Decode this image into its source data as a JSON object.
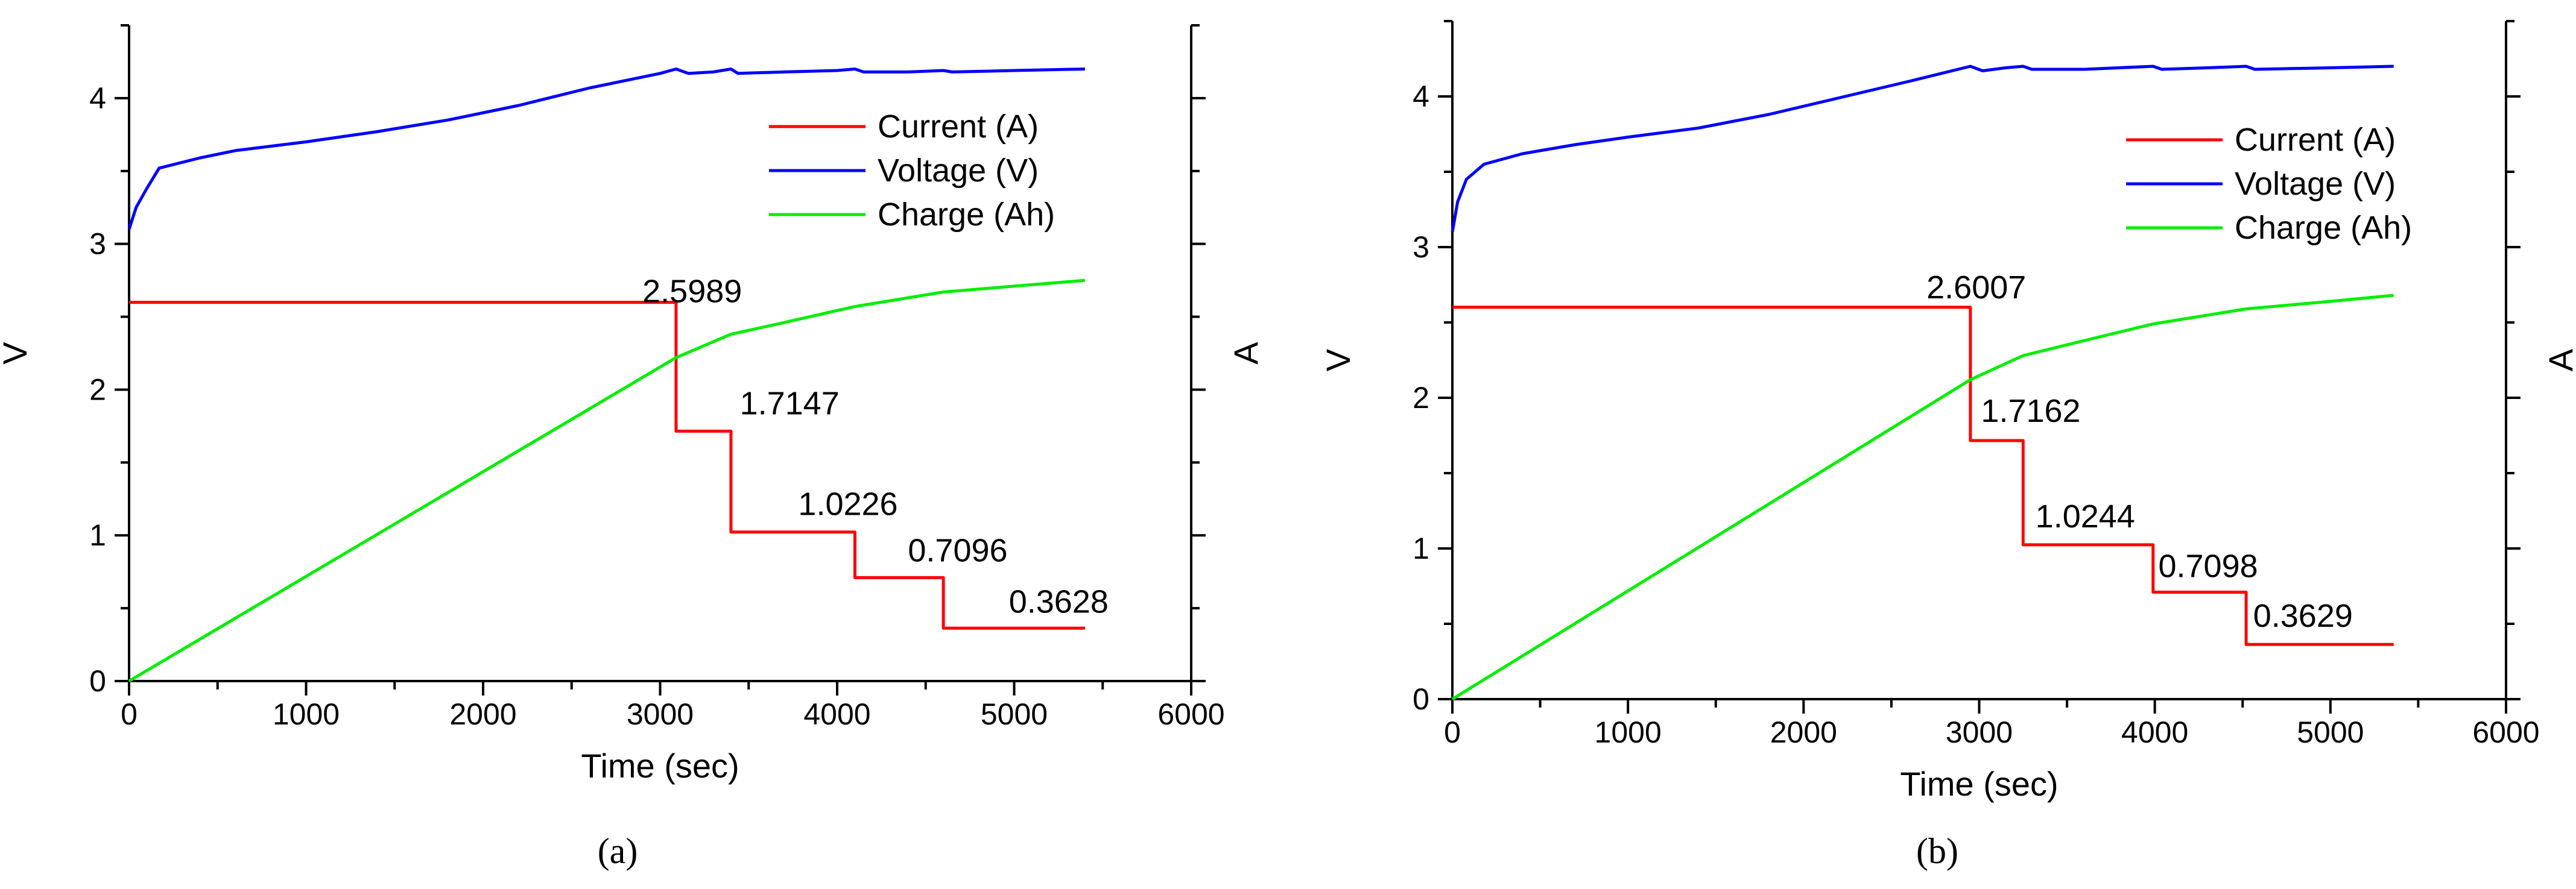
{
  "chart_data": [
    {
      "type": "line",
      "panel_label": "(a)",
      "xlabel": "Time (sec)",
      "ylabel_left": "V",
      "ylabel_right": "A",
      "xlim": [
        0,
        6000
      ],
      "ylim": [
        0,
        4.5
      ],
      "x_ticks": [
        "0",
        "1000",
        "2000",
        "3000",
        "4000",
        "5000",
        "6000"
      ],
      "y_ticks": [
        "0",
        "1",
        "2",
        "3",
        "4"
      ],
      "legend": {
        "position": "top-right",
        "entries": [
          "Current (A)",
          "Voltage (V)",
          "Charge (Ah)"
        ]
      },
      "colors": {
        "current": "#ff0000",
        "voltage": "#0000ff",
        "charge": "#00ee00"
      },
      "series": [
        {
          "name": "Current (A)",
          "key": "current",
          "step": true,
          "x": [
            0,
            3090,
            3090,
            3400,
            3400,
            4100,
            4100,
            4600,
            4600,
            5400
          ],
          "y": [
            2.5989,
            2.5989,
            1.7147,
            1.7147,
            1.0226,
            1.0226,
            0.7096,
            0.7096,
            0.3628,
            0.3628
          ]
        },
        {
          "name": "Voltage (V)",
          "key": "voltage",
          "x": [
            0,
            40,
            100,
            170,
            400,
            600,
            1000,
            1400,
            1800,
            2200,
            2600,
            3000,
            3090,
            3160,
            3300,
            3400,
            3440,
            3700,
            4000,
            4100,
            4150,
            4400,
            4600,
            4650,
            5000,
            5400
          ],
          "y": [
            3.1,
            3.25,
            3.38,
            3.52,
            3.59,
            3.64,
            3.7,
            3.77,
            3.85,
            3.95,
            4.07,
            4.17,
            4.2,
            4.17,
            4.18,
            4.2,
            4.17,
            4.18,
            4.19,
            4.2,
            4.18,
            4.18,
            4.19,
            4.18,
            4.19,
            4.2
          ]
        },
        {
          "name": "Charge (Ah)",
          "key": "charge",
          "x": [
            0,
            3090,
            3400,
            3700,
            4100,
            4600,
            5000,
            5400
          ],
          "y": [
            0,
            2.22,
            2.38,
            2.46,
            2.57,
            2.67,
            2.71,
            2.75
          ]
        }
      ],
      "annotations": [
        {
          "text": "2.5989",
          "x": 2900,
          "y": 2.6
        },
        {
          "text": "1.7147",
          "x": 3450,
          "y": 1.83
        },
        {
          "text": "1.0226",
          "x": 3780,
          "y": 1.14
        },
        {
          "text": "0.7096",
          "x": 4400,
          "y": 0.82
        },
        {
          "text": "0.3628",
          "x": 4970,
          "y": 0.47
        }
      ]
    },
    {
      "type": "line",
      "panel_label": "(b)",
      "xlabel": "Time (sec)",
      "ylabel_left": "V",
      "ylabel_right": "A",
      "xlim": [
        0,
        6000
      ],
      "ylim": [
        0,
        4.5
      ],
      "x_ticks": [
        "0",
        "1000",
        "2000",
        "3000",
        "4000",
        "5000",
        "6000"
      ],
      "y_ticks": [
        "0",
        "1",
        "2",
        "3",
        "4"
      ],
      "legend": {
        "position": "top-right",
        "entries": [
          "Current (A)",
          "Voltage (V)",
          "Charge (Ah)"
        ]
      },
      "colors": {
        "current": "#ff0000",
        "voltage": "#0000ff",
        "charge": "#00ee00"
      },
      "series": [
        {
          "name": "Current (A)",
          "key": "current",
          "step": true,
          "x": [
            0,
            2950,
            2950,
            3250,
            3250,
            3990,
            3990,
            4520,
            4520,
            5360
          ],
          "y": [
            2.6007,
            2.6007,
            1.7162,
            1.7162,
            1.0244,
            1.0244,
            0.7098,
            0.7098,
            0.3629,
            0.3629
          ]
        },
        {
          "name": "Voltage (V)",
          "key": "voltage",
          "x": [
            0,
            30,
            80,
            180,
            400,
            700,
            1000,
            1400,
            1800,
            2200,
            2600,
            2950,
            3020,
            3150,
            3250,
            3300,
            3600,
            3990,
            4040,
            4300,
            4520,
            4570,
            5000,
            5360
          ],
          "y": [
            3.1,
            3.3,
            3.45,
            3.55,
            3.62,
            3.68,
            3.73,
            3.79,
            3.88,
            3.99,
            4.1,
            4.2,
            4.17,
            4.19,
            4.2,
            4.18,
            4.18,
            4.2,
            4.18,
            4.19,
            4.2,
            4.18,
            4.19,
            4.2
          ]
        },
        {
          "name": "Charge (Ah)",
          "key": "charge",
          "x": [
            0,
            2950,
            3250,
            3600,
            3990,
            4520,
            5000,
            5360
          ],
          "y": [
            0,
            2.12,
            2.28,
            2.38,
            2.49,
            2.59,
            2.64,
            2.68
          ]
        }
      ],
      "annotations": [
        {
          "text": "2.6007",
          "x": 2700,
          "y": 2.66
        },
        {
          "text": "1.7162",
          "x": 3010,
          "y": 1.84
        },
        {
          "text": "1.0244",
          "x": 3320,
          "y": 1.14
        },
        {
          "text": "0.7098",
          "x": 4020,
          "y": 0.81
        },
        {
          "text": "0.3629",
          "x": 4560,
          "y": 0.48
        }
      ]
    }
  ]
}
